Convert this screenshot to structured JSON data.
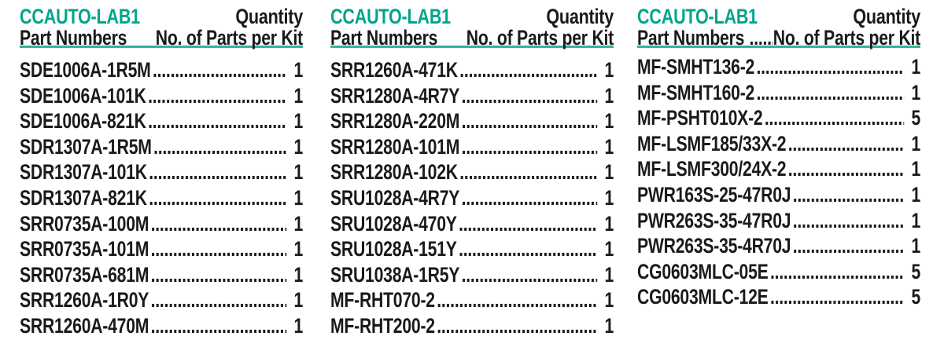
{
  "styles": {
    "accent_color": "#00A48C",
    "rule_color": "#33B39D",
    "text_color": "#1A1A1A",
    "background_color": "#FFFFFF"
  },
  "columns": [
    {
      "title": "CCAUTO-LAB1",
      "quantity_label": "Quantity",
      "part_numbers_label": "Part Numbers",
      "parts_per_kit_label": "No. of Parts per Kit",
      "subheader_dot_leader": false,
      "rows": [
        {
          "part": "SDE1006A-1R5M",
          "qty": "1"
        },
        {
          "part": "SDE1006A-101K",
          "qty": "1"
        },
        {
          "part": "SDE1006A-821K",
          "qty": "1"
        },
        {
          "part": "SDR1307A-1R5M",
          "qty": "1"
        },
        {
          "part": "SDR1307A-101K",
          "qty": "1"
        },
        {
          "part": "SDR1307A-821K",
          "qty": "1"
        },
        {
          "part": "SRR0735A-100M",
          "qty": "1"
        },
        {
          "part": "SRR0735A-101M",
          "qty": "1"
        },
        {
          "part": "SRR0735A-681M",
          "qty": "1"
        },
        {
          "part": "SRR1260A-1R0Y",
          "qty": "1"
        },
        {
          "part": "SRR1260A-470M",
          "qty": "1"
        }
      ]
    },
    {
      "title": "CCAUTO-LAB1",
      "quantity_label": "Quantity",
      "part_numbers_label": "Part Numbers",
      "parts_per_kit_label": "No. of Parts per Kit",
      "subheader_dot_leader": false,
      "rows": [
        {
          "part": "SRR1260A-471K",
          "qty": "1"
        },
        {
          "part": "SRR1280A-4R7Y",
          "qty": "1"
        },
        {
          "part": "SRR1280A-220M",
          "qty": "1"
        },
        {
          "part": "SRR1280A-101M",
          "qty": "1"
        },
        {
          "part": "SRR1280A-102K",
          "qty": "1"
        },
        {
          "part": "SRU1028A-4R7Y",
          "qty": "1"
        },
        {
          "part": "SRU1028A-470Y",
          "qty": "1"
        },
        {
          "part": "SRU1028A-151Y",
          "qty": "1"
        },
        {
          "part": "SRU1038A-1R5Y",
          "qty": "1"
        },
        {
          "part": "MF-RHT070-2",
          "qty": "1"
        },
        {
          "part": "MF-RHT200-2",
          "qty": "1"
        }
      ]
    },
    {
      "title": "CCAUTO-LAB1",
      "quantity_label": "Quantity",
      "part_numbers_label": "Part Numbers",
      "parts_per_kit_label": "No. of Parts per Kit",
      "subheader_dot_leader": true,
      "rows": [
        {
          "part": "MF-SMHT136-2",
          "qty": "1"
        },
        {
          "part": "MF-SMHT160-2",
          "qty": "1"
        },
        {
          "part": "MF-PSHT010X-2",
          "qty": "5"
        },
        {
          "part": "MF-LSMF185/33X-2",
          "qty": "1"
        },
        {
          "part": "MF-LSMF300/24X-2",
          "qty": "1"
        },
        {
          "part": "PWR163S-25-47R0J",
          "qty": "1"
        },
        {
          "part": "PWR263S-35-47R0J",
          "qty": "1"
        },
        {
          "part": "PWR263S-35-4R70J",
          "qty": "1"
        },
        {
          "part": "CG0603MLC-05E",
          "qty": "5"
        },
        {
          "part": "CG0603MLC-12E",
          "qty": "5"
        }
      ]
    }
  ]
}
